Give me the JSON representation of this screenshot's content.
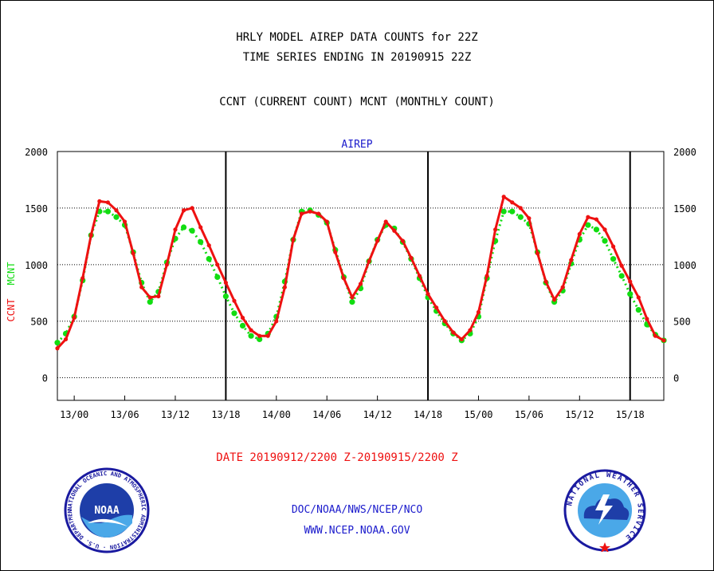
{
  "title_line1": "HRLY MODEL AIREP DATA COUNTS for 22Z",
  "title_line2": "TIME SERIES ENDING IN 20190915 22Z",
  "subtitle": "CCNT (CURRENT COUNT) MCNT (MONTHLY COUNT)",
  "date_range": "DATE 20190912/2200 Z-20190915/2200 Z",
  "footer_line1": "DOC/NOAA/NWS/NCEP/NCO",
  "footer_line2": "WWW.NCEP.NOAA.GOV",
  "logos": {
    "noaa": "NOAA",
    "noaa_ring": "NATIONAL OCEANIC AND ATMOSPHERIC ADMINISTRATION · U.S. DEPARTMENT OF COMMERCE",
    "nws_ring": "NATIONAL WEATHER SERVICE"
  },
  "colors": {
    "ccnt": "#ee1111",
    "mcnt": "#11dd11",
    "label": "#1a1acc"
  },
  "chart_data": {
    "type": "line",
    "title": "AIREP",
    "ylabel_ccnt": "CCNT",
    "ylabel_mcnt": "MCNT",
    "ylim": [
      -200,
      2000
    ],
    "yticks": [
      0,
      500,
      1000,
      1500,
      2000
    ],
    "x_tick_labels": [
      "13/00",
      "13/06",
      "13/12",
      "13/18",
      "14/00",
      "14/06",
      "14/12",
      "14/18",
      "15/00",
      "15/06",
      "15/12",
      "15/18"
    ],
    "x_tick_offsets_hours": [
      2,
      8,
      14,
      20,
      26,
      32,
      38,
      44,
      50,
      56,
      62,
      68
    ],
    "day_boundaries_hours": [
      20,
      44,
      68
    ],
    "grid": true,
    "series": [
      {
        "name": "CCNT",
        "values": [
          260,
          340,
          530,
          880,
          1260,
          1560,
          1550,
          1480,
          1380,
          1100,
          800,
          710,
          720,
          1000,
          1310,
          1480,
          1500,
          1330,
          1170,
          1000,
          840,
          680,
          530,
          420,
          370,
          370,
          500,
          800,
          1220,
          1450,
          1470,
          1450,
          1380,
          1110,
          880,
          710,
          830,
          1030,
          1210,
          1380,
          1300,
          1210,
          1060,
          900,
          740,
          620,
          500,
          400,
          340,
          420,
          580,
          900,
          1310,
          1600,
          1550,
          1500,
          1410,
          1100,
          850,
          690,
          800,
          1040,
          1270,
          1420,
          1400,
          1310,
          1160,
          990,
          850,
          710,
          520,
          370,
          330
        ]
      },
      {
        "name": "MCNT",
        "values": [
          310,
          390,
          540,
          860,
          1260,
          1470,
          1470,
          1420,
          1350,
          1110,
          840,
          670,
          760,
          1020,
          1230,
          1330,
          1300,
          1200,
          1050,
          890,
          720,
          570,
          460,
          370,
          340,
          390,
          540,
          850,
          1220,
          1470,
          1480,
          1440,
          1370,
          1130,
          890,
          670,
          790,
          1030,
          1220,
          1350,
          1320,
          1200,
          1050,
          880,
          710,
          590,
          480,
          390,
          330,
          390,
          540,
          880,
          1210,
          1470,
          1470,
          1420,
          1360,
          1110,
          840,
          670,
          770,
          1010,
          1220,
          1350,
          1310,
          1210,
          1050,
          900,
          740,
          600,
          470,
          380,
          330
        ]
      }
    ]
  }
}
